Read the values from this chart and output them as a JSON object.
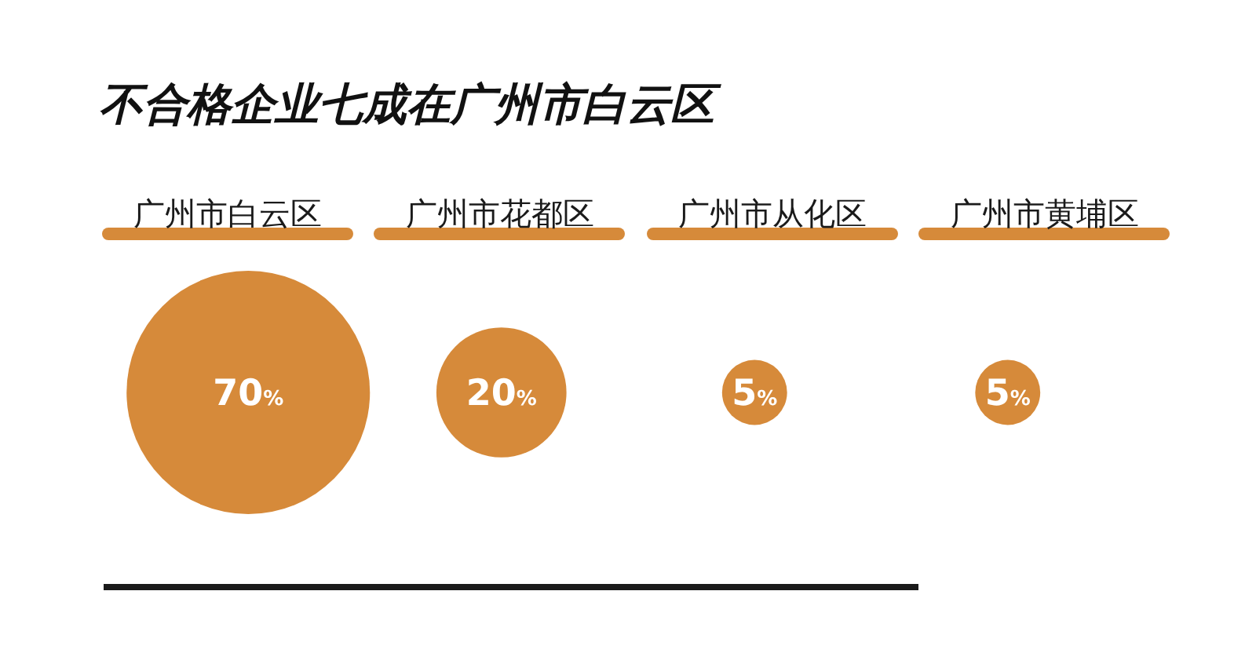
{
  "chart_data": {
    "type": "other",
    "title": "不合格企业七成在广州市白云区",
    "categories": [
      "广州市白云区",
      "广州市花都区",
      "广州市从化区",
      "广州市黄埔区"
    ],
    "values": [
      70,
      20,
      5,
      5
    ],
    "color": "#d68a3a",
    "value_labels": [
      "70%",
      "20%",
      "5%",
      "5%"
    ]
  }
}
